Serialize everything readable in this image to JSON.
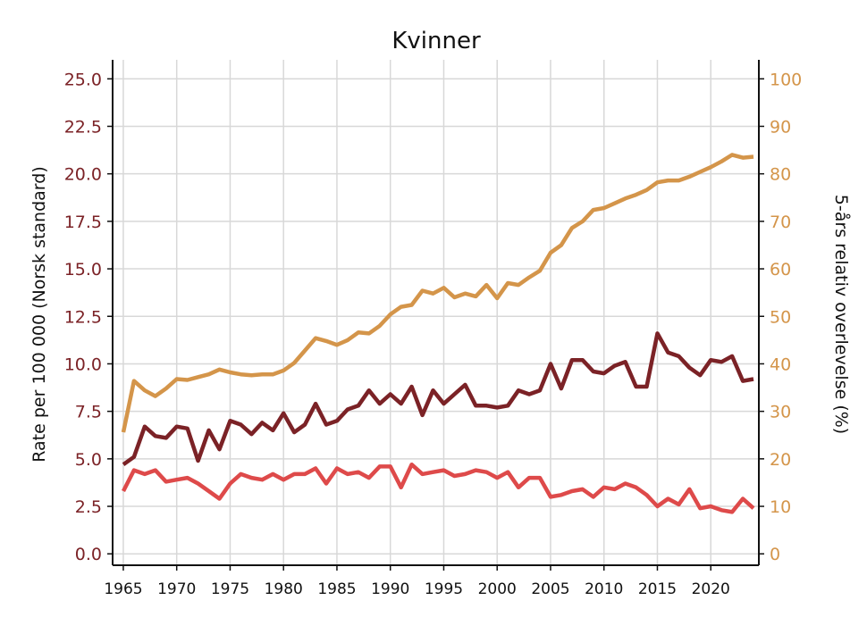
{
  "chart_data": {
    "type": "line",
    "title": "Kvinner",
    "ylabel": "Rate per 100 000 (Norsk standard)",
    "ylabel_right": "5-års relativ overlevelse (%)",
    "xlabel": "",
    "grid": true,
    "xlim": [
      1964,
      2024.5
    ],
    "ylim": [
      -0.6,
      26.0
    ],
    "ylim_right": [
      -2.4,
      104.0
    ],
    "x_ticks": [
      1965,
      1970,
      1975,
      1980,
      1985,
      1990,
      1995,
      2000,
      2005,
      2010,
      2015,
      2020
    ],
    "y_ticks": [
      "0.0",
      "2.5",
      "5.0",
      "7.5",
      "10.0",
      "12.5",
      "15.0",
      "17.5",
      "20.0",
      "22.5",
      "25.0"
    ],
    "y_ticks_right": [
      "0",
      "10",
      "20",
      "30",
      "40",
      "50",
      "60",
      "70",
      "80",
      "90",
      "100"
    ],
    "tick_colors": {
      "left": "#7b2226",
      "right": "#d4954a"
    },
    "x": [
      1965,
      1966,
      1967,
      1968,
      1969,
      1970,
      1971,
      1972,
      1973,
      1974,
      1975,
      1976,
      1977,
      1978,
      1979,
      1980,
      1981,
      1982,
      1983,
      1984,
      1985,
      1986,
      1987,
      1988,
      1989,
      1990,
      1991,
      1992,
      1993,
      1994,
      1995,
      1996,
      1997,
      1998,
      1999,
      2000,
      2001,
      2002,
      2003,
      2004,
      2005,
      2006,
      2007,
      2008,
      2009,
      2010,
      2011,
      2012,
      2013,
      2014,
      2015,
      2016,
      2017,
      2018,
      2019,
      2020,
      2021,
      2022,
      2023,
      2024
    ],
    "series": [
      {
        "axis": "right",
        "color": "#d4954a",
        "values": [
          25.6,
          36.4,
          34.4,
          33.2,
          34.8,
          36.8,
          36.6,
          37.2,
          37.8,
          38.8,
          38.2,
          37.8,
          37.6,
          37.8,
          37.8,
          38.6,
          40.2,
          42.8,
          45.4,
          44.8,
          44.0,
          45.0,
          46.6,
          46.4,
          48.0,
          50.4,
          52.0,
          52.4,
          55.4,
          54.8,
          56.0,
          54.0,
          54.8,
          54.2,
          56.6,
          53.8,
          57.0,
          56.6,
          58.2,
          59.6,
          63.4,
          65.0,
          68.6,
          70.0,
          72.4,
          72.8,
          73.8,
          74.8,
          75.6,
          76.6,
          78.2,
          78.6,
          78.6,
          79.4,
          80.4,
          81.4,
          82.6,
          84.0,
          83.4,
          83.6
        ]
      },
      {
        "axis": "left",
        "color": "#7b2226",
        "values": [
          4.7,
          5.1,
          6.7,
          6.2,
          6.1,
          6.7,
          6.6,
          4.9,
          6.5,
          5.5,
          7.0,
          6.8,
          6.3,
          6.9,
          6.5,
          7.4,
          6.4,
          6.8,
          7.9,
          6.8,
          7.0,
          7.6,
          7.8,
          8.6,
          7.9,
          8.4,
          7.9,
          8.8,
          7.3,
          8.6,
          7.9,
          8.4,
          8.9,
          7.8,
          7.8,
          7.7,
          7.8,
          8.6,
          8.4,
          8.6,
          10.0,
          8.7,
          10.2,
          10.2,
          9.6,
          9.5,
          9.9,
          10.1,
          8.8,
          8.8,
          11.6,
          10.6,
          10.4,
          9.8,
          9.4,
          10.2,
          10.1,
          10.4,
          9.1,
          9.2
        ]
      },
      {
        "axis": "left",
        "color": "#de4a4a",
        "values": [
          3.3,
          4.4,
          4.2,
          4.4,
          3.8,
          3.9,
          4.0,
          3.7,
          3.3,
          2.9,
          3.7,
          4.2,
          4.0,
          3.9,
          4.2,
          3.9,
          4.2,
          4.2,
          4.5,
          3.7,
          4.5,
          4.2,
          4.3,
          4.0,
          4.6,
          4.6,
          3.5,
          4.7,
          4.2,
          4.3,
          4.4,
          4.1,
          4.2,
          4.4,
          4.3,
          4.0,
          4.3,
          3.5,
          4.0,
          4.0,
          3.0,
          3.1,
          3.3,
          3.4,
          3.0,
          3.5,
          3.4,
          3.7,
          3.5,
          3.1,
          2.5,
          2.9,
          2.6,
          3.4,
          2.4,
          2.5,
          2.3,
          2.2,
          2.9,
          2.4
        ]
      }
    ]
  }
}
